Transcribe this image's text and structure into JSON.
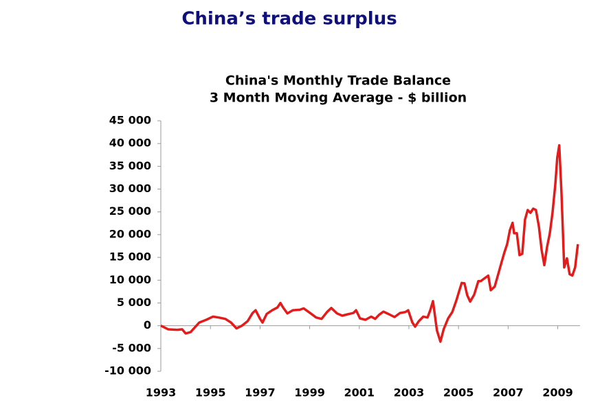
{
  "header": {
    "title": "China’s trade surplus"
  },
  "chart_data": {
    "type": "line",
    "title": "China's Monthly Trade Balance",
    "subtitle": "3 Month Moving Average - $ billion",
    "xlim": [
      1993,
      2009.9
    ],
    "xticks": [
      1993,
      1995,
      1997,
      1999,
      2001,
      2003,
      2005,
      2007,
      2009
    ],
    "ylim": [
      -10000,
      45000
    ],
    "yticks": [
      {
        "value": -10000,
        "label": "-10 000"
      },
      {
        "value": -5000,
        "label": "-5 000"
      },
      0,
      {
        "value": 5000,
        "label": "5 000"
      },
      {
        "value": 10000,
        "label": "10 000"
      },
      {
        "value": 15000,
        "label": "15 000"
      },
      {
        "value": 20000,
        "label": "20 000"
      },
      {
        "value": 25000,
        "label": "25 000"
      },
      {
        "value": 30000,
        "label": "30 000"
      },
      {
        "value": 35000,
        "label": "35 000"
      },
      {
        "value": 40000,
        "label": "40 000"
      },
      {
        "value": 45000,
        "label": "45 000"
      }
    ],
    "x": [
      1993.0,
      1993.3,
      1993.66,
      1993.86,
      1994.0,
      1994.2,
      1994.55,
      1994.83,
      1995.1,
      1995.33,
      1995.6,
      1995.83,
      1996.05,
      1996.27,
      1996.5,
      1996.7,
      1996.82,
      1997.0,
      1997.1,
      1997.27,
      1997.49,
      1997.7,
      1997.82,
      1997.93,
      1998.1,
      1998.32,
      1998.6,
      1998.76,
      1999.04,
      1999.26,
      1999.48,
      1999.7,
      1999.87,
      2000.1,
      2000.31,
      2000.53,
      2000.76,
      2000.87,
      2001.03,
      2001.25,
      2001.48,
      2001.64,
      2001.8,
      2001.97,
      2002.2,
      2002.42,
      2002.64,
      2002.86,
      2002.97,
      2003.14,
      2003.25,
      2003.4,
      2003.58,
      2003.75,
      2003.86,
      2003.97,
      2004.13,
      2004.27,
      2004.4,
      2004.58,
      2004.75,
      2004.91,
      2005.02,
      2005.13,
      2005.24,
      2005.35,
      2005.47,
      2005.63,
      2005.8,
      2005.9,
      2006.0,
      2006.2,
      2006.3,
      2006.46,
      2006.63,
      2006.74,
      2006.85,
      2006.96,
      2007.07,
      2007.18,
      2007.24,
      2007.35,
      2007.46,
      2007.57,
      2007.68,
      2007.79,
      2007.9,
      2008.01,
      2008.12,
      2008.24,
      2008.35,
      2008.46,
      2008.57,
      2008.68,
      2008.79,
      2008.9,
      2008.98,
      2009.06,
      2009.15,
      2009.26,
      2009.37,
      2009.48,
      2009.59,
      2009.7,
      2009.81
    ],
    "series": [
      {
        "name": "Trade balance",
        "color": "#e31b1b",
        "values": [
          0,
          -800,
          -900,
          -800,
          -1700,
          -1400,
          700,
          1300,
          2000,
          1800,
          1500,
          700,
          -600,
          0,
          1000,
          2800,
          3400,
          1500,
          700,
          2600,
          3400,
          4000,
          5000,
          4000,
          2700,
          3400,
          3500,
          3800,
          2700,
          1800,
          1500,
          3000,
          3900,
          2700,
          2200,
          2500,
          2800,
          3400,
          1600,
          1300,
          2000,
          1500,
          2400,
          3100,
          2500,
          1900,
          2800,
          3000,
          3400,
          700,
          -200,
          1000,
          2000,
          1800,
          3400,
          5400,
          -1000,
          -3500,
          -800,
          1600,
          3000,
          5500,
          7500,
          9400,
          9300,
          6700,
          5300,
          6800,
          9800,
          9800,
          10200,
          11000,
          7800,
          8600,
          11900,
          14000,
          16100,
          17900,
          21000,
          22600,
          20300,
          20300,
          15500,
          15800,
          23300,
          25400,
          24800,
          25700,
          25400,
          21800,
          16600,
          13300,
          17300,
          20300,
          24800,
          30900,
          36900,
          39600,
          29400,
          12800,
          14800,
          11300,
          11000,
          12800,
          17900
        ]
      }
    ]
  }
}
